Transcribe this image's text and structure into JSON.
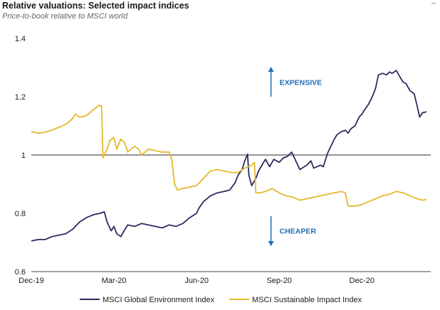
{
  "chart_data": {
    "type": "line",
    "title": "Relative valuations: Selected impact indices",
    "subtitle": "Price-to-book relative to MSCI world",
    "xlabel": "",
    "ylabel": "",
    "ylim": [
      0.6,
      1.4
    ],
    "yticks": [
      0.6,
      0.8,
      1,
      1.2,
      1.4
    ],
    "ytick_labels": [
      "0.6",
      "0.8",
      "1",
      "1.2",
      "1.4"
    ],
    "xticks": [
      {
        "label": "Dec-19",
        "month": 0
      },
      {
        "label": "Mar-20",
        "month": 3
      },
      {
        "label": "Jun-20",
        "month": 6
      },
      {
        "label": "Sep-20",
        "month": 9
      },
      {
        "label": "Dec-20",
        "month": 12
      }
    ],
    "xlim_months": [
      0,
      14.5
    ],
    "reference_line": 1,
    "grid": false,
    "legend_position": "bottom",
    "annotations": [
      {
        "text": "EXPENSIVE",
        "direction": "up",
        "month": 8.7,
        "y_from": 1.2,
        "y_to": 1.3
      },
      {
        "text": "CHEAPER",
        "direction": "down",
        "month": 8.7,
        "y_from": 0.79,
        "y_to": 0.69
      }
    ],
    "series": [
      {
        "name": "MSCI Global Environment Index",
        "color": "#2d2a5e",
        "points": [
          [
            0,
            0.705
          ],
          [
            0.25,
            0.71
          ],
          [
            0.5,
            0.71
          ],
          [
            0.75,
            0.72
          ],
          [
            1.0,
            0.725
          ],
          [
            1.25,
            0.73
          ],
          [
            1.5,
            0.745
          ],
          [
            1.75,
            0.77
          ],
          [
            2.0,
            0.785
          ],
          [
            2.25,
            0.795
          ],
          [
            2.5,
            0.8
          ],
          [
            2.65,
            0.805
          ],
          [
            2.75,
            0.77
          ],
          [
            2.9,
            0.74
          ],
          [
            3.0,
            0.755
          ],
          [
            3.1,
            0.73
          ],
          [
            3.25,
            0.72
          ],
          [
            3.4,
            0.745
          ],
          [
            3.5,
            0.76
          ],
          [
            3.75,
            0.755
          ],
          [
            4.0,
            0.765
          ],
          [
            4.25,
            0.76
          ],
          [
            4.5,
            0.755
          ],
          [
            4.75,
            0.75
          ],
          [
            5.0,
            0.76
          ],
          [
            5.25,
            0.755
          ],
          [
            5.5,
            0.765
          ],
          [
            5.75,
            0.785
          ],
          [
            6.0,
            0.8
          ],
          [
            6.1,
            0.82
          ],
          [
            6.25,
            0.84
          ],
          [
            6.5,
            0.86
          ],
          [
            6.75,
            0.87
          ],
          [
            7.0,
            0.875
          ],
          [
            7.2,
            0.88
          ],
          [
            7.4,
            0.905
          ],
          [
            7.5,
            0.93
          ],
          [
            7.65,
            0.95
          ],
          [
            7.75,
            0.98
          ],
          [
            7.85,
            1.003
          ],
          [
            7.9,
            0.93
          ],
          [
            8.0,
            0.895
          ],
          [
            8.15,
            0.92
          ],
          [
            8.25,
            0.945
          ],
          [
            8.4,
            0.97
          ],
          [
            8.5,
            0.985
          ],
          [
            8.65,
            0.96
          ],
          [
            8.8,
            0.985
          ],
          [
            9.0,
            0.975
          ],
          [
            9.15,
            0.99
          ],
          [
            9.3,
            0.995
          ],
          [
            9.45,
            1.01
          ],
          [
            9.55,
            0.99
          ],
          [
            9.75,
            0.95
          ],
          [
            10.0,
            0.965
          ],
          [
            10.15,
            0.98
          ],
          [
            10.25,
            0.955
          ],
          [
            10.5,
            0.965
          ],
          [
            10.6,
            0.96
          ],
          [
            10.75,
            1.005
          ],
          [
            11.0,
            1.055
          ],
          [
            11.1,
            1.07
          ],
          [
            11.25,
            1.08
          ],
          [
            11.4,
            1.085
          ],
          [
            11.5,
            1.075
          ],
          [
            11.6,
            1.09
          ],
          [
            11.75,
            1.1
          ],
          [
            11.9,
            1.13
          ],
          [
            12.0,
            1.14
          ],
          [
            12.1,
            1.155
          ],
          [
            12.25,
            1.175
          ],
          [
            12.4,
            1.205
          ],
          [
            12.5,
            1.23
          ],
          [
            12.6,
            1.275
          ],
          [
            12.75,
            1.28
          ],
          [
            12.9,
            1.275
          ],
          [
            13.0,
            1.285
          ],
          [
            13.1,
            1.28
          ],
          [
            13.25,
            1.29
          ],
          [
            13.4,
            1.265
          ],
          [
            13.5,
            1.25
          ],
          [
            13.6,
            1.245
          ],
          [
            13.75,
            1.22
          ],
          [
            13.9,
            1.21
          ],
          [
            14.0,
            1.17
          ],
          [
            14.1,
            1.13
          ],
          [
            14.2,
            1.145
          ],
          [
            14.35,
            1.148
          ]
        ]
      },
      {
        "name": "MSCI Sustainable Impact Index",
        "color": "#e5b92a",
        "points": [
          [
            0,
            1.08
          ],
          [
            0.25,
            1.075
          ],
          [
            0.5,
            1.078
          ],
          [
            0.75,
            1.085
          ],
          [
            1.0,
            1.095
          ],
          [
            1.25,
            1.105
          ],
          [
            1.5,
            1.125
          ],
          [
            1.6,
            1.14
          ],
          [
            1.75,
            1.13
          ],
          [
            2.0,
            1.135
          ],
          [
            2.25,
            1.155
          ],
          [
            2.45,
            1.17
          ],
          [
            2.55,
            1.168
          ],
          [
            2.6,
            0.99
          ],
          [
            2.75,
            1.02
          ],
          [
            2.85,
            1.05
          ],
          [
            3.0,
            1.06
          ],
          [
            3.1,
            1.02
          ],
          [
            3.25,
            1.055
          ],
          [
            3.4,
            1.04
          ],
          [
            3.5,
            1.01
          ],
          [
            3.75,
            1.03
          ],
          [
            3.9,
            1.02
          ],
          [
            4.0,
            1.0
          ],
          [
            4.25,
            1.02
          ],
          [
            4.5,
            1.015
          ],
          [
            4.75,
            1.01
          ],
          [
            5.0,
            1.01
          ],
          [
            5.1,
            0.985
          ],
          [
            5.2,
            0.9
          ],
          [
            5.3,
            0.88
          ],
          [
            5.5,
            0.885
          ],
          [
            5.75,
            0.89
          ],
          [
            6.0,
            0.895
          ],
          [
            6.25,
            0.92
          ],
          [
            6.5,
            0.945
          ],
          [
            6.75,
            0.95
          ],
          [
            7.0,
            0.945
          ],
          [
            7.25,
            0.94
          ],
          [
            7.5,
            0.94
          ],
          [
            7.75,
            0.955
          ],
          [
            8.0,
            0.965
          ],
          [
            8.1,
            0.975
          ],
          [
            8.15,
            0.87
          ],
          [
            8.3,
            0.87
          ],
          [
            8.5,
            0.875
          ],
          [
            8.75,
            0.885
          ],
          [
            9.0,
            0.87
          ],
          [
            9.25,
            0.86
          ],
          [
            9.5,
            0.855
          ],
          [
            9.75,
            0.845
          ],
          [
            10.0,
            0.85
          ],
          [
            10.25,
            0.855
          ],
          [
            10.5,
            0.86
          ],
          [
            10.75,
            0.865
          ],
          [
            11.0,
            0.87
          ],
          [
            11.25,
            0.875
          ],
          [
            11.4,
            0.87
          ],
          [
            11.5,
            0.825
          ],
          [
            11.75,
            0.825
          ],
          [
            12.0,
            0.83
          ],
          [
            12.25,
            0.84
          ],
          [
            12.5,
            0.85
          ],
          [
            12.75,
            0.86
          ],
          [
            13.0,
            0.865
          ],
          [
            13.25,
            0.875
          ],
          [
            13.5,
            0.87
          ],
          [
            13.75,
            0.86
          ],
          [
            14.0,
            0.85
          ],
          [
            14.2,
            0.845
          ],
          [
            14.35,
            0.848
          ]
        ]
      }
    ]
  }
}
